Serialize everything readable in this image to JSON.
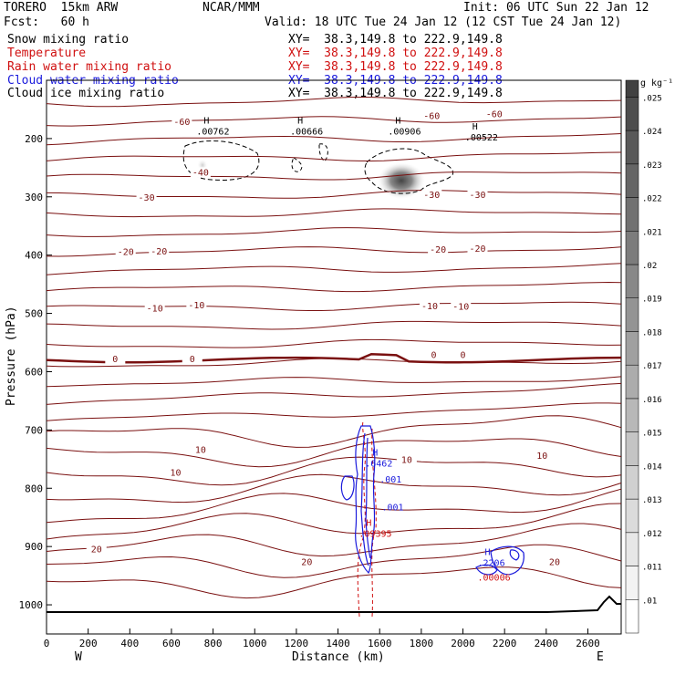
{
  "header": {
    "model": "TORERO  15km ARW",
    "center": "NCAR/MMM",
    "init": "Init: 06 UTC Sun 22 Jan 12",
    "fcst": "Fcst:   60 h",
    "valid": "Valid: 18 UTC Tue 24 Jan 12 (12 CST Tue 24 Jan 12)"
  },
  "fields": [
    {
      "label": "Snow mixing ratio",
      "xy": "XY=  38.3,149.8 to 222.9,149.8",
      "color": "#000000"
    },
    {
      "label": "Temperature",
      "xy": "XY=  38.3,149.8 to 222.9,149.8",
      "color": "#d01010"
    },
    {
      "label": "Rain water mixing ratio",
      "xy": "XY=  38.3,149.8 to 222.9,149.8",
      "color": "#d01010"
    },
    {
      "label": "Cloud water mixing ratio",
      "xy": "XY=  38.3,149.8 to 222.9,149.8",
      "color": "#1a1adc"
    },
    {
      "label": "Cloud ice mixing ratio",
      "xy": "XY=  38.3,149.8 to 222.9,149.8",
      "color": "#000000"
    }
  ],
  "chart_data": {
    "type": "contour cross-section",
    "xlabel": "Distance (km)",
    "ylabel": "Pressure (hPa)",
    "xlim": [
      0,
      2760
    ],
    "ylim": [
      1050,
      100
    ],
    "x_ticks": [
      0,
      200,
      400,
      600,
      800,
      1000,
      1200,
      1400,
      1600,
      1800,
      2000,
      2200,
      2400,
      2600
    ],
    "y_ticks": [
      200,
      300,
      400,
      500,
      600,
      700,
      800,
      900,
      1000
    ],
    "x_end_labels": {
      "left": "W",
      "right": "E"
    },
    "colorbar": {
      "unit": "g kg⁻¹",
      "ticks": [
        ".01",
        ".011",
        ".012",
        ".013",
        ".014",
        ".015",
        ".016",
        ".017",
        ".018",
        ".019",
        ".02",
        ".021",
        ".022",
        ".023",
        ".024",
        ".025"
      ]
    },
    "temperature_contours": [
      {
        "label": "-60",
        "positions": [
          {
            "x": 1850,
            "p": 165
          },
          {
            "x": 2150,
            "p": 162
          },
          {
            "x": 650,
            "p": 175
          }
        ]
      },
      {
        "label": "-40",
        "positions": [
          {
            "x": 740,
            "p": 262
          }
        ]
      },
      {
        "label": "-30",
        "positions": [
          {
            "x": 480,
            "p": 305
          },
          {
            "x": 1850,
            "p": 300
          },
          {
            "x": 2070,
            "p": 300
          }
        ]
      },
      {
        "label": "-20",
        "positions": [
          {
            "x": 380,
            "p": 398
          },
          {
            "x": 540,
            "p": 397
          },
          {
            "x": 1880,
            "p": 394
          },
          {
            "x": 2070,
            "p": 393
          }
        ]
      },
      {
        "label": "-10",
        "positions": [
          {
            "x": 520,
            "p": 495
          },
          {
            "x": 720,
            "p": 490
          },
          {
            "x": 1840,
            "p": 491
          },
          {
            "x": 1990,
            "p": 492
          }
        ]
      },
      {
        "label": "0",
        "positions": [
          {
            "x": 330,
            "p": 582
          },
          {
            "x": 700,
            "p": 582
          },
          {
            "x": 1860,
            "p": 575
          },
          {
            "x": 2000,
            "p": 575
          }
        ]
      },
      {
        "label": "10",
        "positions": [
          {
            "x": 740,
            "p": 738
          },
          {
            "x": 620,
            "p": 777
          },
          {
            "x": 1730,
            "p": 755
          },
          {
            "x": 2380,
            "p": 748
          }
        ]
      },
      {
        "label": "20",
        "positions": [
          {
            "x": 240,
            "p": 908
          },
          {
            "x": 1250,
            "p": 930
          },
          {
            "x": 2440,
            "p": 930
          }
        ]
      }
    ],
    "maxima": [
      {
        "label": "H",
        "value": ".00762",
        "x": 720,
        "p": 190,
        "field": "Cloud ice mixing ratio"
      },
      {
        "label": "H",
        "value": ".00666",
        "x": 1170,
        "p": 190,
        "field": "Cloud ice mixing ratio"
      },
      {
        "label": "H",
        "value": ".00906",
        "x": 1640,
        "p": 190,
        "field": "Cloud ice mixing ratio"
      },
      {
        "label": "H",
        "value": ".00522",
        "x": 2010,
        "p": 200,
        "field": "Cloud ice mixing ratio"
      },
      {
        "label": "H",
        "value": ".6462",
        "x": 1530,
        "p": 760,
        "field": "Cloud water mixing ratio"
      },
      {
        "label": "H",
        "value": ".09395",
        "x": 1500,
        "p": 880,
        "field": "Rain water mixing ratio"
      },
      {
        "label": "H",
        "value": ".2206",
        "x": 2070,
        "p": 930,
        "field": "Cloud water mixing ratio"
      },
      {
        "label": "",
        "value": ".00006",
        "x": 2070,
        "p": 955,
        "field": "Rain water mixing ratio"
      }
    ],
    "other_labels": [
      {
        "value": ".001",
        "x": 1600,
        "p": 790
      },
      {
        "value": ".001",
        "x": 1610,
        "p": 838
      }
    ]
  }
}
